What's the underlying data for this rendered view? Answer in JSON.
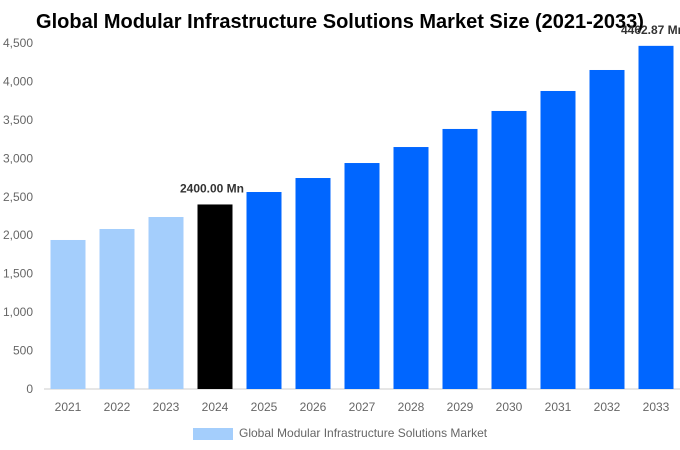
{
  "chart_data": {
    "type": "bar",
    "title": "Global Modular Infrastructure Solutions Market Size (2021-2033)",
    "categories": [
      "2021",
      "2022",
      "2023",
      "2024",
      "2025",
      "2026",
      "2027",
      "2028",
      "2029",
      "2030",
      "2031",
      "2032",
      "2033"
    ],
    "series": [
      {
        "name": "Global Modular Infrastructure Solutions Market",
        "values": [
          1938,
          2081,
          2237,
          2400,
          2562,
          2744,
          2939,
          3147,
          3382,
          3616,
          3876,
          4149,
          4462.87
        ]
      }
    ],
    "ylim": [
      0,
      4500
    ],
    "yticks": [
      "0",
      "500",
      "1,000",
      "1,500",
      "2,000",
      "2,500",
      "3,000",
      "3,500",
      "4,000",
      "4,500"
    ],
    "data_labels": [
      {
        "category": "2024",
        "text": "2400.00 Mn"
      },
      {
        "category": "2033",
        "text": "4462.87 Mn"
      }
    ],
    "colors": {
      "historical": "#a4cefc",
      "current": "#000000",
      "forecast": "#0066ff"
    },
    "legend": "bottom",
    "grid": false
  }
}
